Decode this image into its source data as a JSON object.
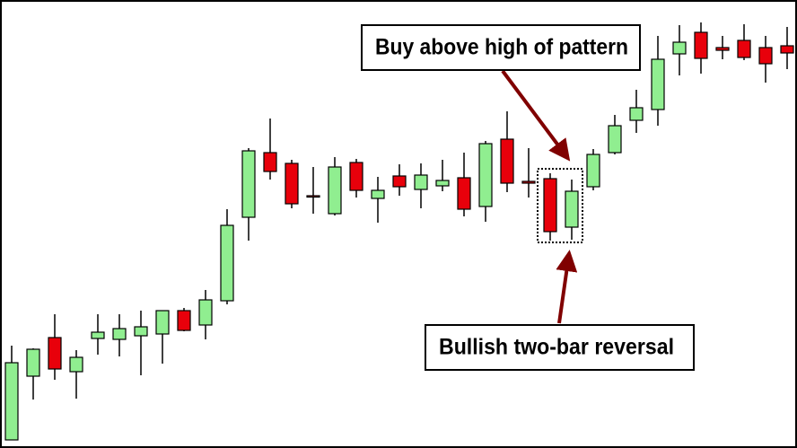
{
  "chart_data": {
    "type": "candlestick",
    "up_color": "#90ee90",
    "down_color": "#e8000b",
    "ylim": [
      0,
      500
    ],
    "open": [
      10,
      81,
      124,
      86,
      123,
      122,
      126,
      128,
      154,
      138,
      165,
      258,
      330,
      318,
      282,
      262,
      319,
      279,
      304,
      289,
      293,
      302,
      270,
      345,
      298,
      301,
      247,
      292,
      330,
      366,
      378,
      440,
      464,
      447,
      455,
      447,
      449
    ],
    "close": [
      96,
      111,
      89,
      102,
      130,
      134,
      136,
      154,
      132,
      166,
      249,
      332,
      309,
      273,
      281,
      314,
      288,
      288,
      292,
      305,
      299,
      267,
      340,
      296,
      296,
      242,
      287,
      328,
      360,
      380,
      434,
      453,
      435,
      444,
      436,
      429,
      441
    ],
    "high": [
      115,
      112,
      150,
      110,
      150,
      150,
      154,
      154,
      157,
      177,
      267,
      335,
      368,
      322,
      314,
      325,
      323,
      303,
      317,
      318,
      322,
      330,
      343,
      376,
      335,
      307,
      300,
      334,
      372,
      400,
      460,
      472,
      475,
      460,
      473,
      460,
      470
    ],
    "low": [
      10,
      55,
      77,
      56,
      105,
      103,
      82,
      95,
      131,
      122,
      161,
      232,
      300,
      268,
      262,
      260,
      280,
      252,
      282,
      268,
      287,
      259,
      253,
      286,
      280,
      232,
      233,
      288,
      328,
      352,
      360,
      416,
      418,
      434,
      433,
      408,
      423
    ],
    "annotations": [
      "Buy above high of pattern",
      "Bullish two-bar reversal"
    ]
  }
}
